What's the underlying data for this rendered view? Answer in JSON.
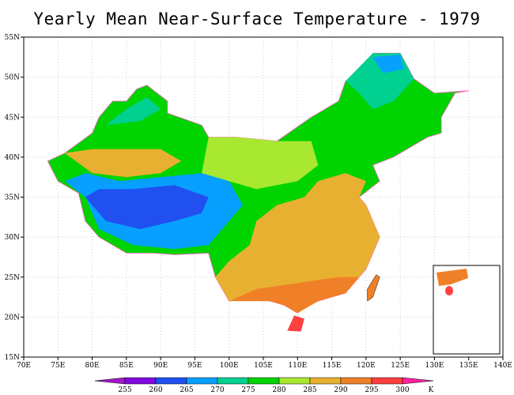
{
  "title": "Yearly Mean Near-Surface Temperature - 1979",
  "map": {
    "lon_range": [
      70,
      140
    ],
    "lat_range": [
      15,
      55
    ],
    "lon_ticks": [
      "70E",
      "75E",
      "80E",
      "85E",
      "90E",
      "95E",
      "100E",
      "105E",
      "110E",
      "115E",
      "120E",
      "125E",
      "130E",
      "135E",
      "140E"
    ],
    "lat_ticks": [
      "15N",
      "20N",
      "25N",
      "30N",
      "35N",
      "40N",
      "45N",
      "50N",
      "55N"
    ],
    "grid": "dotted"
  },
  "colorbar": {
    "levels": [
      "255",
      "260",
      "265",
      "270",
      "275",
      "280",
      "285",
      "290",
      "295",
      "300"
    ],
    "unit": "K",
    "colors": [
      "#a018c8",
      "#8008e0",
      "#2050f0",
      "#08a0ff",
      "#00d090",
      "#00d400",
      "#a8e830",
      "#e8b030",
      "#f08028",
      "#ff4040",
      "#ff20a0"
    ]
  }
}
